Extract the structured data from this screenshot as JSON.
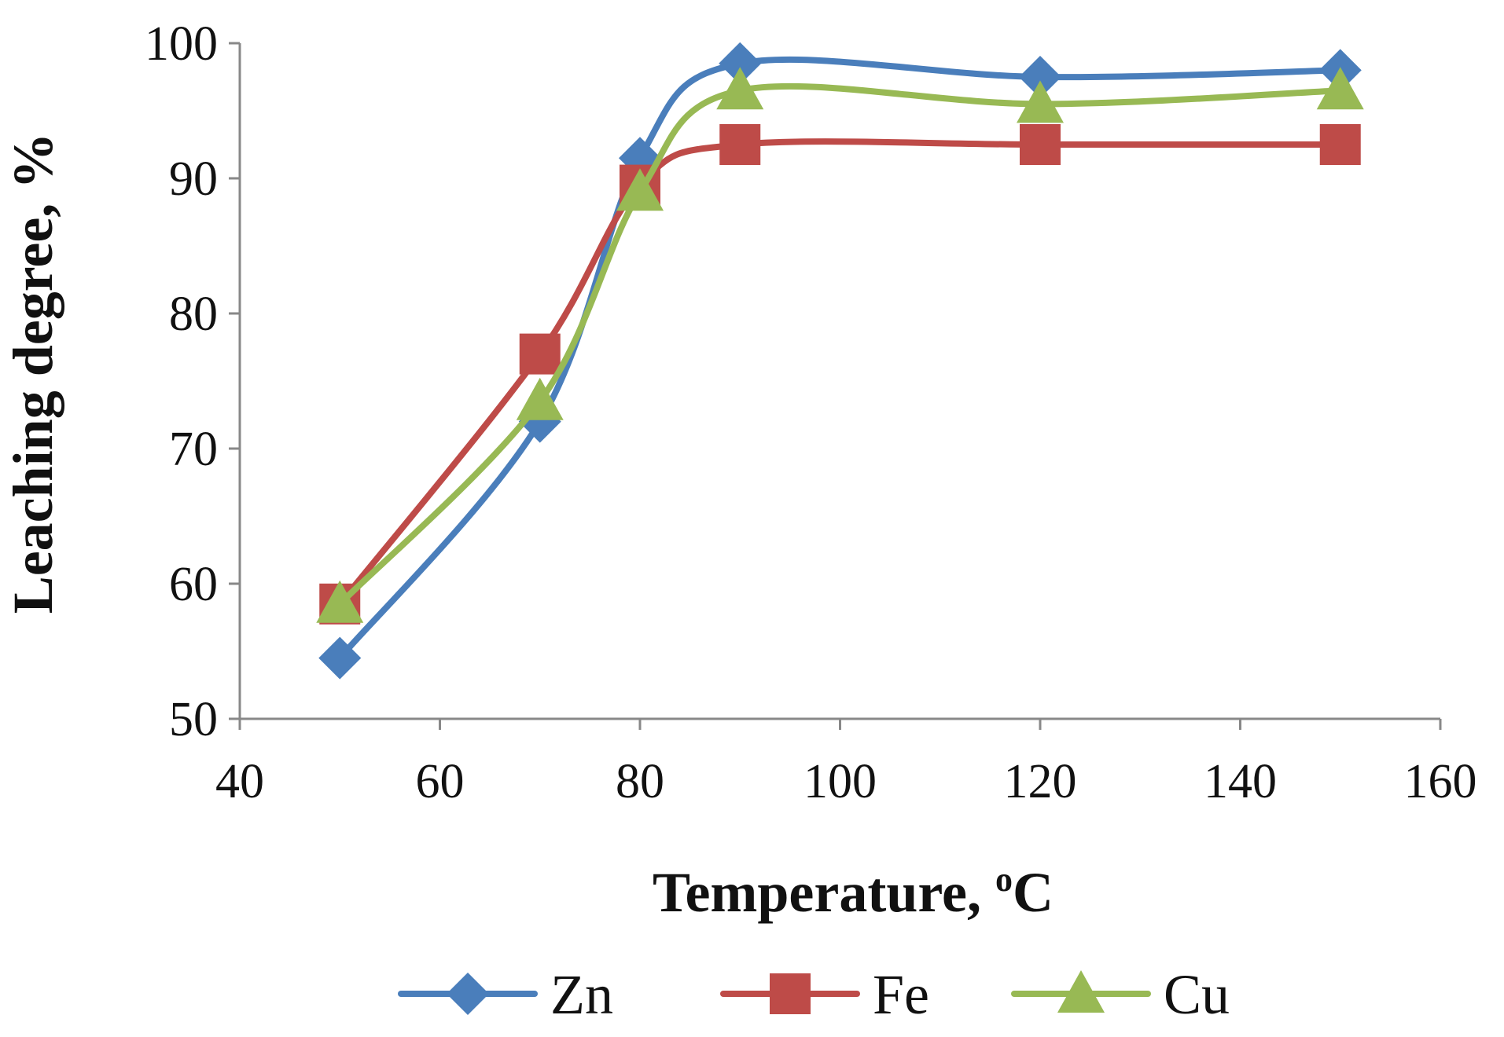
{
  "chart_data": {
    "type": "line",
    "title": "",
    "xlabel": "Temperature, ",
    "xlabel_sup": "o",
    "xlabel_suffix": "C",
    "ylabel": "Leaching degree, %",
    "xlim": [
      40,
      160
    ],
    "ylim": [
      50,
      100
    ],
    "xticks": [
      40,
      60,
      80,
      100,
      120,
      140,
      160
    ],
    "yticks": [
      50,
      60,
      70,
      80,
      90,
      100
    ],
    "grid": false,
    "legend_position": "bottom",
    "x": [
      50,
      70,
      80,
      90,
      120,
      150
    ],
    "series": [
      {
        "name": "Zn",
        "color": "#4a7ebb",
        "marker": "diamond",
        "values": [
          54.5,
          72.0,
          91.5,
          98.5,
          97.5,
          98.0
        ]
      },
      {
        "name": "Fe",
        "color": "#be4b48",
        "marker": "square",
        "values": [
          58.5,
          77.0,
          89.5,
          92.5,
          92.5,
          92.5
        ]
      },
      {
        "name": "Cu",
        "color": "#98b954",
        "marker": "triangle",
        "values": [
          58.5,
          73.5,
          89.0,
          96.5,
          95.5,
          96.5
        ]
      }
    ]
  }
}
